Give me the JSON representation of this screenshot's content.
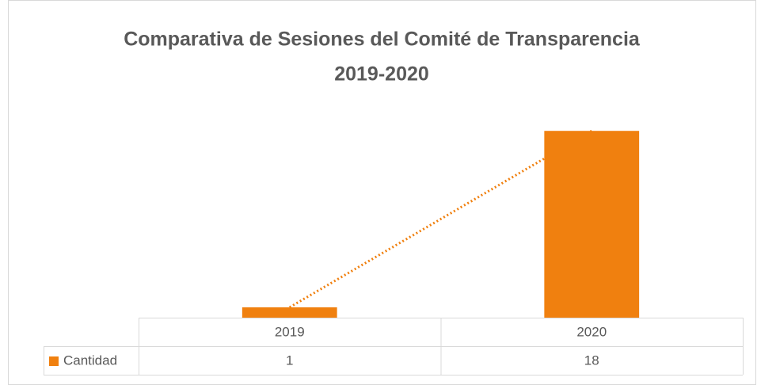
{
  "chart_data": {
    "type": "bar",
    "title": [
      "Comparativa de Sesiones del Comité de Transparencia",
      "2019-2020"
    ],
    "categories": [
      "2019",
      "2020"
    ],
    "series": [
      {
        "name": "Cantidad",
        "color": "#f0800f",
        "values": [
          1,
          18
        ]
      }
    ],
    "ylim": [
      0,
      20
    ],
    "trendline": true,
    "data_table": true
  }
}
